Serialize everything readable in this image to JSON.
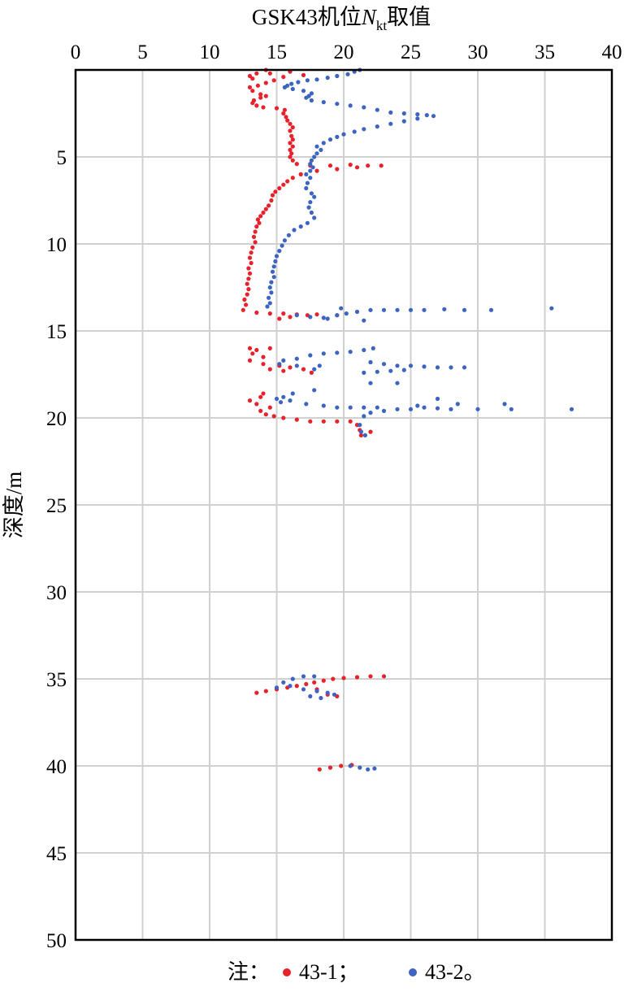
{
  "chart_data": {
    "type": "scatter",
    "title_prefix": "GSK43机位",
    "title_var": "N",
    "title_sub": "kt",
    "title_suffix": "取值",
    "xlabel": "",
    "ylabel": "深度/m",
    "xlim": [
      0,
      40
    ],
    "ylim": [
      0,
      50
    ],
    "x_ticks": [
      "0",
      "5",
      "10",
      "15",
      "20",
      "25",
      "30",
      "35",
      "40"
    ],
    "y_ticks": [
      "5",
      "10",
      "15",
      "20",
      "25",
      "30",
      "35",
      "40",
      "45",
      "50"
    ],
    "x_axis_position": "top",
    "y_axis_inverted": true,
    "grid": true,
    "legend_prefix": "注：",
    "legend_suffix": "。",
    "series": [
      {
        "name": "43-1；",
        "color": "#e8212a",
        "points": [
          [
            14.2,
            0.0
          ],
          [
            13.5,
            0.2
          ],
          [
            13.0,
            0.35
          ],
          [
            13.2,
            0.5
          ],
          [
            14.5,
            0.2
          ],
          [
            16.0,
            0.1
          ],
          [
            17.0,
            0.3
          ],
          [
            15.5,
            0.4
          ],
          [
            14.8,
            0.6
          ],
          [
            14.2,
            0.75
          ],
          [
            13.6,
            0.9
          ],
          [
            13.0,
            1.0
          ],
          [
            13.2,
            1.2
          ],
          [
            13.8,
            1.4
          ],
          [
            14.2,
            1.5
          ],
          [
            13.8,
            1.6
          ],
          [
            13.3,
            1.75
          ],
          [
            13.2,
            1.9
          ],
          [
            13.5,
            2.05
          ],
          [
            14.0,
            2.15
          ],
          [
            15.0,
            2.2
          ],
          [
            15.6,
            2.3
          ],
          [
            15.5,
            2.5
          ],
          [
            15.7,
            2.7
          ],
          [
            15.8,
            2.9
          ],
          [
            16.0,
            3.1
          ],
          [
            16.2,
            3.3
          ],
          [
            16.0,
            3.5
          ],
          [
            16.1,
            3.8
          ],
          [
            16.2,
            4.0
          ],
          [
            16.0,
            4.2
          ],
          [
            16.2,
            4.4
          ],
          [
            16.0,
            4.6
          ],
          [
            16.1,
            4.8
          ],
          [
            16.0,
            5.0
          ],
          [
            16.2,
            5.2
          ],
          [
            16.5,
            5.4
          ],
          [
            17.5,
            5.5
          ],
          [
            19.0,
            5.5
          ],
          [
            20.5,
            5.45
          ],
          [
            21.8,
            5.5
          ],
          [
            22.8,
            5.5
          ],
          [
            21.0,
            5.6
          ],
          [
            19.5,
            5.7
          ],
          [
            18.0,
            5.8
          ],
          [
            16.8,
            6.0
          ],
          [
            16.2,
            6.2
          ],
          [
            15.8,
            6.4
          ],
          [
            15.5,
            6.6
          ],
          [
            15.2,
            6.8
          ],
          [
            14.9,
            7.0
          ],
          [
            14.7,
            7.2
          ],
          [
            14.6,
            7.5
          ],
          [
            14.4,
            7.8
          ],
          [
            14.2,
            8.0
          ],
          [
            14.0,
            8.2
          ],
          [
            13.8,
            8.4
          ],
          [
            13.6,
            8.6
          ],
          [
            13.7,
            8.8
          ],
          [
            13.5,
            9.0
          ],
          [
            13.4,
            9.3
          ],
          [
            13.3,
            9.6
          ],
          [
            13.4,
            9.9
          ],
          [
            13.2,
            10.2
          ],
          [
            13.1,
            10.5
          ],
          [
            13.0,
            10.8
          ],
          [
            13.1,
            11.1
          ],
          [
            12.9,
            11.4
          ],
          [
            13.0,
            11.7
          ],
          [
            12.9,
            12.0
          ],
          [
            12.8,
            12.3
          ],
          [
            12.9,
            12.6
          ],
          [
            12.8,
            12.9
          ],
          [
            12.6,
            13.2
          ],
          [
            12.7,
            13.5
          ],
          [
            12.5,
            13.8
          ],
          [
            13.5,
            13.95
          ],
          [
            14.5,
            14.0
          ],
          [
            15.5,
            14.0
          ],
          [
            16.5,
            14.05
          ],
          [
            17.3,
            14.1
          ],
          [
            16.0,
            14.2
          ],
          [
            15.2,
            14.3
          ],
          [
            18.0,
            14.05
          ],
          [
            19.5,
            14.1
          ],
          [
            13.0,
            16.0
          ],
          [
            13.5,
            16.1
          ],
          [
            14.5,
            16.0
          ],
          [
            13.2,
            16.3
          ],
          [
            14.0,
            16.5
          ],
          [
            13.0,
            16.7
          ],
          [
            14.0,
            16.9
          ],
          [
            15.2,
            17.0
          ],
          [
            16.0,
            17.1
          ],
          [
            17.0,
            17.2
          ],
          [
            17.6,
            17.4
          ],
          [
            15.5,
            17.3
          ],
          [
            14.5,
            17.2
          ],
          [
            14.0,
            18.6
          ],
          [
            13.8,
            18.8
          ],
          [
            13.0,
            19.0
          ],
          [
            13.5,
            19.2
          ],
          [
            14.5,
            19.4
          ],
          [
            13.8,
            19.6
          ],
          [
            14.2,
            19.8
          ],
          [
            14.8,
            19.9
          ],
          [
            15.5,
            20.0
          ],
          [
            16.5,
            20.1
          ],
          [
            17.5,
            20.2
          ],
          [
            18.5,
            20.2
          ],
          [
            19.5,
            20.2
          ],
          [
            20.5,
            20.2
          ],
          [
            21.0,
            20.4
          ],
          [
            21.2,
            20.7
          ],
          [
            21.3,
            21.0
          ],
          [
            22.0,
            20.8
          ],
          [
            13.5,
            35.8
          ],
          [
            14.2,
            35.7
          ],
          [
            15.0,
            35.6
          ],
          [
            15.8,
            35.5
          ],
          [
            16.5,
            35.4
          ],
          [
            17.2,
            35.3
          ],
          [
            17.8,
            35.2
          ],
          [
            18.5,
            35.1
          ],
          [
            19.2,
            35.0
          ],
          [
            20.0,
            34.95
          ],
          [
            21.0,
            34.9
          ],
          [
            22.0,
            34.85
          ],
          [
            23.0,
            34.85
          ],
          [
            18.0,
            35.6
          ],
          [
            18.8,
            35.9
          ],
          [
            19.5,
            36.0
          ],
          [
            18.2,
            40.2
          ],
          [
            19.0,
            40.1
          ],
          [
            19.8,
            40.0
          ],
          [
            20.6,
            39.95
          ]
        ]
      },
      {
        "name": "43-2",
        "color": "#3d64c0",
        "points": [
          [
            21.2,
            0.0
          ],
          [
            20.8,
            0.1
          ],
          [
            20.3,
            0.25
          ],
          [
            19.5,
            0.35
          ],
          [
            18.8,
            0.45
          ],
          [
            18.0,
            0.55
          ],
          [
            17.3,
            0.6
          ],
          [
            16.6,
            0.7
          ],
          [
            16.1,
            0.8
          ],
          [
            15.8,
            0.9
          ],
          [
            15.6,
            1.0
          ],
          [
            16.2,
            1.1
          ],
          [
            17.0,
            1.2
          ],
          [
            17.6,
            1.35
          ],
          [
            17.4,
            1.5
          ],
          [
            17.2,
            1.6
          ],
          [
            17.6,
            1.75
          ],
          [
            18.5,
            1.85
          ],
          [
            19.5,
            1.95
          ],
          [
            20.5,
            2.05
          ],
          [
            21.5,
            2.15
          ],
          [
            22.5,
            2.3
          ],
          [
            23.5,
            2.45
          ],
          [
            24.5,
            2.5
          ],
          [
            25.5,
            2.55
          ],
          [
            26.2,
            2.6
          ],
          [
            26.7,
            2.65
          ],
          [
            25.5,
            2.8
          ],
          [
            24.5,
            2.95
          ],
          [
            23.5,
            3.1
          ],
          [
            22.5,
            3.25
          ],
          [
            21.5,
            3.4
          ],
          [
            20.8,
            3.55
          ],
          [
            20.0,
            3.7
          ],
          [
            19.5,
            3.85
          ],
          [
            19.0,
            4.0
          ],
          [
            18.5,
            4.2
          ],
          [
            18.0,
            4.4
          ],
          [
            18.3,
            4.6
          ],
          [
            18.0,
            4.8
          ],
          [
            17.8,
            5.0
          ],
          [
            17.6,
            5.2
          ],
          [
            17.5,
            5.4
          ],
          [
            17.7,
            5.6
          ],
          [
            17.5,
            5.8
          ],
          [
            17.2,
            6.0
          ],
          [
            17.5,
            6.2
          ],
          [
            17.3,
            6.5
          ],
          [
            17.2,
            6.8
          ],
          [
            17.6,
            7.1
          ],
          [
            17.8,
            7.3
          ],
          [
            17.5,
            7.6
          ],
          [
            17.4,
            7.9
          ],
          [
            17.6,
            8.2
          ],
          [
            17.8,
            8.5
          ],
          [
            17.3,
            8.8
          ],
          [
            16.8,
            9.0
          ],
          [
            16.3,
            9.2
          ],
          [
            15.9,
            9.5
          ],
          [
            15.6,
            9.8
          ],
          [
            15.4,
            10.1
          ],
          [
            15.2,
            10.4
          ],
          [
            15.0,
            10.7
          ],
          [
            14.9,
            11.0
          ],
          [
            14.8,
            11.3
          ],
          [
            14.7,
            11.6
          ],
          [
            14.8,
            11.9
          ],
          [
            14.6,
            12.2
          ],
          [
            14.5,
            12.5
          ],
          [
            14.6,
            12.8
          ],
          [
            14.4,
            13.1
          ],
          [
            14.5,
            13.4
          ],
          [
            14.3,
            13.6
          ],
          [
            16.5,
            14.1
          ],
          [
            17.5,
            14.2
          ],
          [
            18.5,
            14.25
          ],
          [
            19.5,
            14.1
          ],
          [
            20.2,
            14.0
          ],
          [
            21.0,
            13.9
          ],
          [
            22.0,
            13.8
          ],
          [
            23.0,
            13.8
          ],
          [
            24.0,
            13.8
          ],
          [
            25.0,
            13.8
          ],
          [
            26.0,
            13.8
          ],
          [
            27.5,
            13.75
          ],
          [
            29.0,
            13.8
          ],
          [
            31.0,
            13.8
          ],
          [
            35.5,
            13.7
          ],
          [
            19.8,
            13.7
          ],
          [
            21.5,
            14.4
          ],
          [
            18.8,
            14.3
          ],
          [
            15.5,
            16.7
          ],
          [
            16.5,
            16.6
          ],
          [
            17.5,
            16.4
          ],
          [
            18.5,
            16.3
          ],
          [
            19.5,
            16.25
          ],
          [
            20.5,
            16.2
          ],
          [
            21.5,
            16.1
          ],
          [
            22.2,
            16.0
          ],
          [
            15.2,
            16.9
          ],
          [
            16.5,
            17.0
          ],
          [
            17.8,
            17.2
          ],
          [
            18.2,
            17.0
          ],
          [
            22.0,
            16.8
          ],
          [
            23.0,
            16.9
          ],
          [
            24.0,
            17.0
          ],
          [
            25.0,
            17.0
          ],
          [
            26.0,
            17.05
          ],
          [
            27.0,
            17.1
          ],
          [
            28.0,
            17.1
          ],
          [
            29.0,
            17.1
          ],
          [
            21.5,
            17.4
          ],
          [
            22.5,
            17.35
          ],
          [
            23.5,
            17.3
          ],
          [
            24.5,
            17.25
          ],
          [
            15.0,
            18.9
          ],
          [
            15.5,
            18.8
          ],
          [
            16.2,
            18.6
          ],
          [
            16.0,
            19.0
          ],
          [
            15.3,
            19.1
          ],
          [
            17.2,
            19.2
          ],
          [
            17.8,
            18.4
          ],
          [
            18.5,
            19.3
          ],
          [
            19.5,
            19.4
          ],
          [
            20.5,
            19.4
          ],
          [
            21.5,
            19.4
          ],
          [
            22.5,
            19.4
          ],
          [
            22.0,
            19.7
          ],
          [
            23.0,
            19.6
          ],
          [
            24.0,
            19.5
          ],
          [
            25.0,
            19.5
          ],
          [
            26.0,
            19.4
          ],
          [
            27.0,
            19.45
          ],
          [
            28.0,
            19.5
          ],
          [
            30.0,
            19.5
          ],
          [
            32.5,
            19.5
          ],
          [
            37.0,
            19.5
          ],
          [
            21.5,
            19.9
          ],
          [
            21.2,
            20.4
          ],
          [
            21.3,
            20.8
          ],
          [
            21.6,
            21.0
          ],
          [
            25.5,
            19.3
          ],
          [
            28.5,
            19.2
          ],
          [
            32.0,
            19.2
          ],
          [
            27.0,
            18.9
          ],
          [
            22.0,
            18.0
          ],
          [
            24.0,
            18.0
          ],
          [
            15.0,
            35.5
          ],
          [
            15.5,
            35.2
          ],
          [
            16.2,
            35.0
          ],
          [
            17.0,
            34.85
          ],
          [
            17.8,
            34.85
          ],
          [
            16.0,
            35.4
          ],
          [
            17.0,
            35.6
          ],
          [
            18.0,
            35.7
          ],
          [
            18.8,
            35.8
          ],
          [
            19.3,
            35.9
          ],
          [
            17.5,
            36.0
          ],
          [
            18.3,
            36.1
          ],
          [
            20.5,
            40.0
          ],
          [
            21.2,
            40.1
          ],
          [
            21.8,
            40.2
          ],
          [
            22.3,
            40.15
          ]
        ]
      }
    ]
  }
}
